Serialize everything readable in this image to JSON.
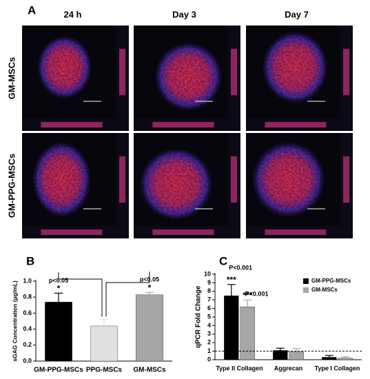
{
  "panel_labels": [
    "A",
    "B",
    "C"
  ],
  "image_grid": {
    "columns": [
      "24 h",
      "Day 3",
      "Day 7"
    ],
    "rows": [
      "GM-MSCs",
      "GM-PPG-MSCs"
    ]
  },
  "chart_data": [
    {
      "type": "bar",
      "ylabel": "sGAG Concentration (μg/mL)",
      "categories": [
        "GM-PPG-MSCs",
        "PPG-MSCs",
        "GM-MSCs"
      ],
      "values": [
        0.74,
        0.44,
        0.83
      ],
      "errors": [
        0.11,
        0.08,
        0.03
      ],
      "colors": [
        "#000000",
        "#e0e0e0",
        "#a6a6a6"
      ],
      "value_annotations": [
        "p<0.05",
        null,
        "p<0.05"
      ],
      "value_stars": [
        "*",
        null,
        "*"
      ],
      "ylim": [
        0,
        1.0
      ],
      "yticks": [
        {
          "value": 0,
          "label": "0.0"
        },
        0.2,
        0.4,
        0.6,
        0.8,
        {
          "value": 1.0,
          "label": "1.0"
        }
      ]
    },
    {
      "type": "grouped_bar",
      "ylabel": "qPCR Fold Change",
      "categories": [
        "Type II Collagen",
        "Aggrecan",
        "Type I Collagen"
      ],
      "series": [
        {
          "name": "GM-PPG-MSCs",
          "color": "#000000",
          "values": [
            7.5,
            1.1,
            0.3
          ],
          "errors": [
            1.3,
            0.25,
            0.2
          ],
          "p_labels": [
            "P<0.001",
            null,
            null
          ],
          "stars": [
            "***",
            null,
            null
          ]
        },
        {
          "name": "GM-MSCs",
          "color": "#a6a6a6",
          "values": [
            6.2,
            0.95,
            0.2
          ],
          "errors": [
            0.8,
            0.35,
            0.15
          ],
          "p_labels": [
            "P<0.001",
            null,
            null
          ],
          "stars": [
            "***",
            null,
            null
          ]
        }
      ],
      "reference_line": 1,
      "ylim": [
        0,
        10
      ],
      "yticks": [
        0,
        1,
        2,
        3,
        4,
        5,
        6,
        7,
        8,
        9,
        10
      ]
    }
  ]
}
